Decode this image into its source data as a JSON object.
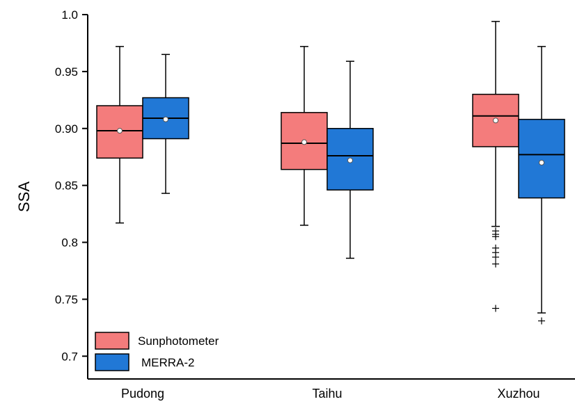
{
  "chart_data": {
    "type": "box",
    "ylabel": "SSA",
    "xlabel": "",
    "ylim": [
      0.68,
      1.0
    ],
    "yticks": [
      0.7,
      0.75,
      0.8,
      0.85,
      0.9,
      0.95,
      1.0
    ],
    "ytick_labels": [
      "0.7",
      "0.75",
      "0.8",
      "0.85",
      "0.90",
      "0.95",
      "1.0"
    ],
    "categories": [
      "Pudong",
      "Taihu",
      "Xuzhou"
    ],
    "legend_position": "bottom-left",
    "grid": false,
    "colors": {
      "Sunphotometer": "#f47c7c",
      "MERRA-2": "#2178d6"
    },
    "series": [
      {
        "name": "Sunphotometer",
        "boxes": [
          {
            "category": "Pudong",
            "whisker_low": 0.817,
            "q1": 0.874,
            "median": 0.898,
            "q3": 0.92,
            "whisker_high": 0.972,
            "mean": 0.898,
            "outliers": []
          },
          {
            "category": "Taihu",
            "whisker_low": 0.815,
            "q1": 0.864,
            "median": 0.887,
            "q3": 0.914,
            "whisker_high": 0.972,
            "mean": 0.888,
            "outliers": []
          },
          {
            "category": "Xuzhou",
            "whisker_low": 0.814,
            "q1": 0.884,
            "median": 0.911,
            "q3": 0.93,
            "whisker_high": 0.994,
            "mean": 0.907,
            "outliers": [
              0.81,
              0.807,
              0.805,
              0.795,
              0.791,
              0.787,
              0.781,
              0.742
            ]
          }
        ]
      },
      {
        "name": "MERRA-2",
        "boxes": [
          {
            "category": "Pudong",
            "whisker_low": 0.843,
            "q1": 0.891,
            "median": 0.909,
            "q3": 0.927,
            "whisker_high": 0.965,
            "mean": 0.908,
            "outliers": []
          },
          {
            "category": "Taihu",
            "whisker_low": 0.786,
            "q1": 0.846,
            "median": 0.876,
            "q3": 0.9,
            "whisker_high": 0.959,
            "mean": 0.872,
            "outliers": []
          },
          {
            "category": "Xuzhou",
            "whisker_low": 0.738,
            "q1": 0.839,
            "median": 0.877,
            "q3": 0.908,
            "whisker_high": 0.972,
            "mean": 0.87,
            "outliers": [
              0.731
            ]
          }
        ]
      }
    ]
  }
}
